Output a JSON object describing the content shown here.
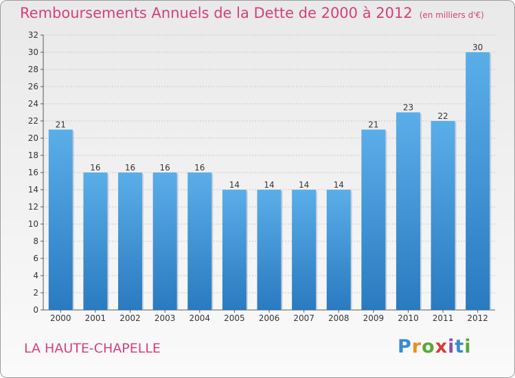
{
  "title": "Remboursements Annuels de la Dette de 2000 à 2012",
  "subtitle": "(en milliers d'€)",
  "commune": "LA HAUTE-CHAPELLE",
  "logo": {
    "text": "Proxiti",
    "colors": [
      "#3a8ad0",
      "#f08a1c",
      "#5aa838",
      "#d63c3c",
      "#8a4fb0",
      "#3a8ad0",
      "#5aa838"
    ]
  },
  "colors": {
    "bar_top": "#5aaee8",
    "bar_bottom": "#2a7ac0",
    "title": "#d2407a"
  },
  "chart_data": {
    "type": "bar",
    "categories": [
      "2000",
      "2001",
      "2002",
      "2003",
      "2004",
      "2005",
      "2006",
      "2007",
      "2008",
      "2009",
      "2010",
      "2011",
      "2012"
    ],
    "values": [
      21,
      16,
      16,
      16,
      16,
      14,
      14,
      14,
      14,
      21,
      23,
      22,
      30
    ],
    "labels": [
      "21",
      "16",
      "16",
      "16",
      "16",
      "14",
      "14",
      "14",
      "14",
      "21",
      "23",
      "22",
      "30"
    ],
    "title": "Remboursements Annuels de la Dette de 2000 à 2012",
    "ylim": [
      0,
      32
    ],
    "yticks": [
      0,
      2,
      4,
      6,
      8,
      10,
      12,
      14,
      16,
      18,
      20,
      22,
      24,
      26,
      28,
      30,
      32
    ],
    "grid": true
  }
}
